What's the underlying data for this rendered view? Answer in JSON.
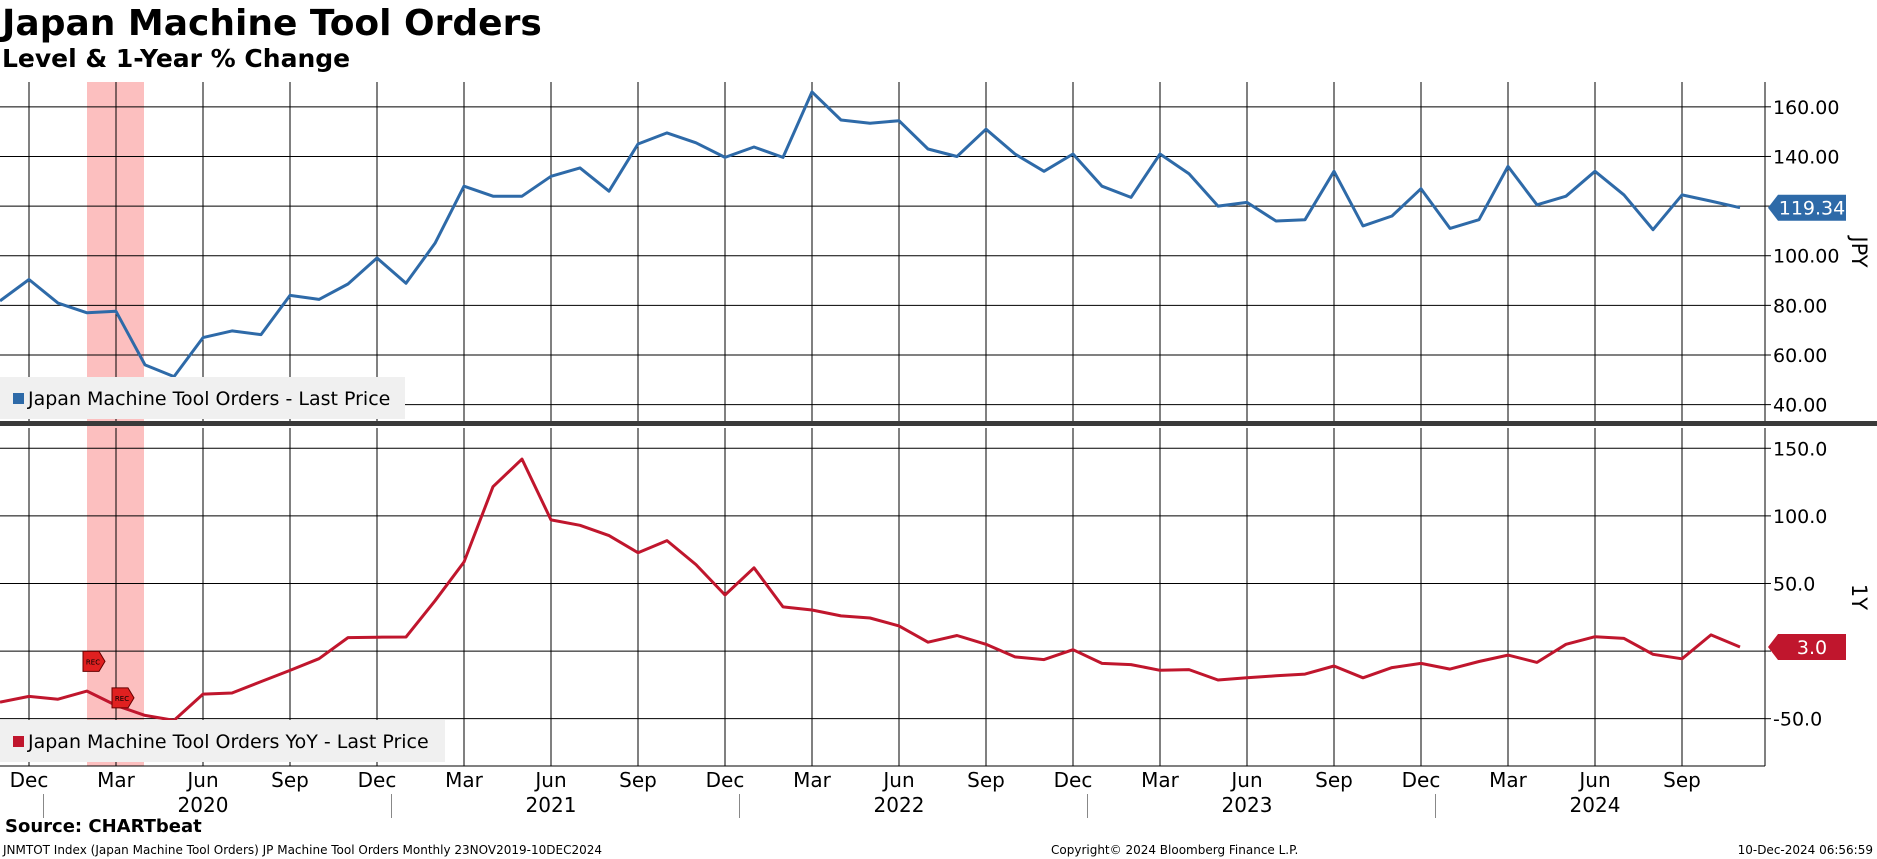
{
  "title": "Japan Machine Tool Orders",
  "subtitle": "Level & 1-Year % Change",
  "source": "Source: CHARTbeat",
  "footer": {
    "left": "JNMTOT Index (Japan Machine Tool Orders) JP Machine Tool Orders  Monthly 23NOV2019-10DEC2024",
    "center": "Copyright© 2024 Bloomberg Finance L.P.",
    "right": "10-Dec-2024 06:56:59"
  },
  "colors": {
    "level": "#2e6aa8",
    "yoy": "#c0162d",
    "recession": "#fbb4b4",
    "grid": "#000000"
  },
  "chart_data": [
    {
      "type": "line",
      "ylabel": "JPY",
      "ylim": [
        33,
        170
      ],
      "yticks": [
        "40.00",
        "60.00",
        "80.00",
        "100.00",
        "120.00",
        "140.00",
        "160.00"
      ],
      "grid": true,
      "legend_position": "bottom-left",
      "last_value_label": "119.34",
      "x": [
        "2019-11",
        "2019-12",
        "2020-01",
        "2020-02",
        "2020-03",
        "2020-04",
        "2020-05",
        "2020-06",
        "2020-07",
        "2020-08",
        "2020-09",
        "2020-10",
        "2020-11",
        "2020-12",
        "2021-01",
        "2021-02",
        "2021-03",
        "2021-04",
        "2021-05",
        "2021-06",
        "2021-07",
        "2021-08",
        "2021-09",
        "2021-10",
        "2021-11",
        "2021-12",
        "2022-01",
        "2022-02",
        "2022-03",
        "2022-04",
        "2022-05",
        "2022-06",
        "2022-07",
        "2022-08",
        "2022-09",
        "2022-10",
        "2022-11",
        "2022-12",
        "2023-01",
        "2023-02",
        "2023-03",
        "2023-04",
        "2023-05",
        "2023-06",
        "2023-07",
        "2023-08",
        "2023-09",
        "2023-10",
        "2023-11",
        "2023-12",
        "2024-01",
        "2024-02",
        "2024-03",
        "2024-04",
        "2024-05",
        "2024-06",
        "2024-07",
        "2024-08",
        "2024-09",
        "2024-10",
        "2024-11"
      ],
      "series": [
        {
          "name": "Japan Machine Tool Orders - Last Price",
          "values": [
            81.8,
            90.4,
            80.9,
            77.0,
            77.6,
            56.0,
            51.3,
            67.0,
            69.7,
            68.2,
            84.0,
            82.4,
            88.6,
            99.1,
            88.9,
            105.0,
            128.0,
            124.0,
            124.0,
            132.0,
            135.4,
            126.0,
            145.0,
            149.5,
            145.5,
            139.6,
            143.8,
            139.6,
            166.0,
            154.7,
            153.4,
            154.4,
            143.0,
            140.0,
            151.0,
            141.0,
            134.0,
            141.0,
            128.0,
            123.5,
            141.0,
            133.0,
            120.0,
            121.5,
            114.0,
            114.5,
            134.0,
            112.0,
            116.0,
            127.0,
            111.0,
            114.5,
            136.0,
            120.5,
            124.0,
            134.0,
            124.5,
            110.5,
            124.5,
            122.0,
            119.34
          ]
        }
      ]
    },
    {
      "type": "line",
      "ylabel": "1Y",
      "ylim": [
        -85,
        165
      ],
      "yticks": [
        "-50.0",
        "50.0",
        "100.0",
        "150.0"
      ],
      "grid": true,
      "legend_position": "bottom-left",
      "last_value_label": "3.0",
      "recession_markers": [
        "REC",
        "REC"
      ],
      "x": [
        "2019-11",
        "2019-12",
        "2020-01",
        "2020-02",
        "2020-03",
        "2020-04",
        "2020-05",
        "2020-06",
        "2020-07",
        "2020-08",
        "2020-09",
        "2020-10",
        "2020-11",
        "2020-12",
        "2021-01",
        "2021-02",
        "2021-03",
        "2021-04",
        "2021-05",
        "2021-06",
        "2021-07",
        "2021-08",
        "2021-09",
        "2021-10",
        "2021-11",
        "2021-12",
        "2022-01",
        "2022-02",
        "2022-03",
        "2022-04",
        "2022-05",
        "2022-06",
        "2022-07",
        "2022-08",
        "2022-09",
        "2022-10",
        "2022-11",
        "2022-12",
        "2023-01",
        "2023-02",
        "2023-03",
        "2023-04",
        "2023-05",
        "2023-06",
        "2023-07",
        "2023-08",
        "2023-09",
        "2023-10",
        "2023-11",
        "2023-12",
        "2024-01",
        "2024-02",
        "2024-03",
        "2024-04",
        "2024-05",
        "2024-06",
        "2024-07",
        "2024-08",
        "2024-09",
        "2024-10",
        "2024-11"
      ],
      "series": [
        {
          "name": "Japan Machine Tool Orders YoY - Last Price",
          "values": [
            -37.7,
            -33.5,
            -35.6,
            -29.6,
            -40.2,
            -47.6,
            -51.3,
            -31.8,
            -31.0,
            -22.6,
            -14.3,
            -5.6,
            10.0,
            10.3,
            10.4,
            37.2,
            65.9,
            121.6,
            142.0,
            97.0,
            93.0,
            85.4,
            72.8,
            81.7,
            64.0,
            41.5,
            61.6,
            32.7,
            30.4,
            26.0,
            24.5,
            18.6,
            6.6,
            11.5,
            5.0,
            -4.3,
            -6.3,
            1.0,
            -9.1,
            -10.0,
            -14.2,
            -13.7,
            -21.4,
            -19.7,
            -18.3,
            -17.0,
            -11.0,
            -19.8,
            -12.2,
            -9.1,
            -13.3,
            -7.7,
            -3.0,
            -8.4,
            5.0,
            10.6,
            9.4,
            -2.4,
            -5.7,
            12.0,
            3.0
          ]
        }
      ]
    }
  ],
  "x_axis": {
    "month_ticks": [
      {
        "date": "2019-12",
        "label": "Dec"
      },
      {
        "date": "2020-03",
        "label": "Mar"
      },
      {
        "date": "2020-06",
        "label": "Jun"
      },
      {
        "date": "2020-09",
        "label": "Sep"
      },
      {
        "date": "2020-12",
        "label": "Dec"
      },
      {
        "date": "2021-03",
        "label": "Mar"
      },
      {
        "date": "2021-06",
        "label": "Jun"
      },
      {
        "date": "2021-09",
        "label": "Sep"
      },
      {
        "date": "2021-12",
        "label": "Dec"
      },
      {
        "date": "2022-03",
        "label": "Mar"
      },
      {
        "date": "2022-06",
        "label": "Jun"
      },
      {
        "date": "2022-09",
        "label": "Sep"
      },
      {
        "date": "2022-12",
        "label": "Dec"
      },
      {
        "date": "2023-03",
        "label": "Mar"
      },
      {
        "date": "2023-06",
        "label": "Jun"
      },
      {
        "date": "2023-09",
        "label": "Sep"
      },
      {
        "date": "2023-12",
        "label": "Dec"
      },
      {
        "date": "2024-03",
        "label": "Mar"
      },
      {
        "date": "2024-06",
        "label": "Jun"
      },
      {
        "date": "2024-09",
        "label": "Sep"
      }
    ],
    "years": [
      "2020",
      "2021",
      "2022",
      "2023",
      "2024"
    ],
    "recession_band": [
      "2020-02",
      "2020-04"
    ]
  }
}
